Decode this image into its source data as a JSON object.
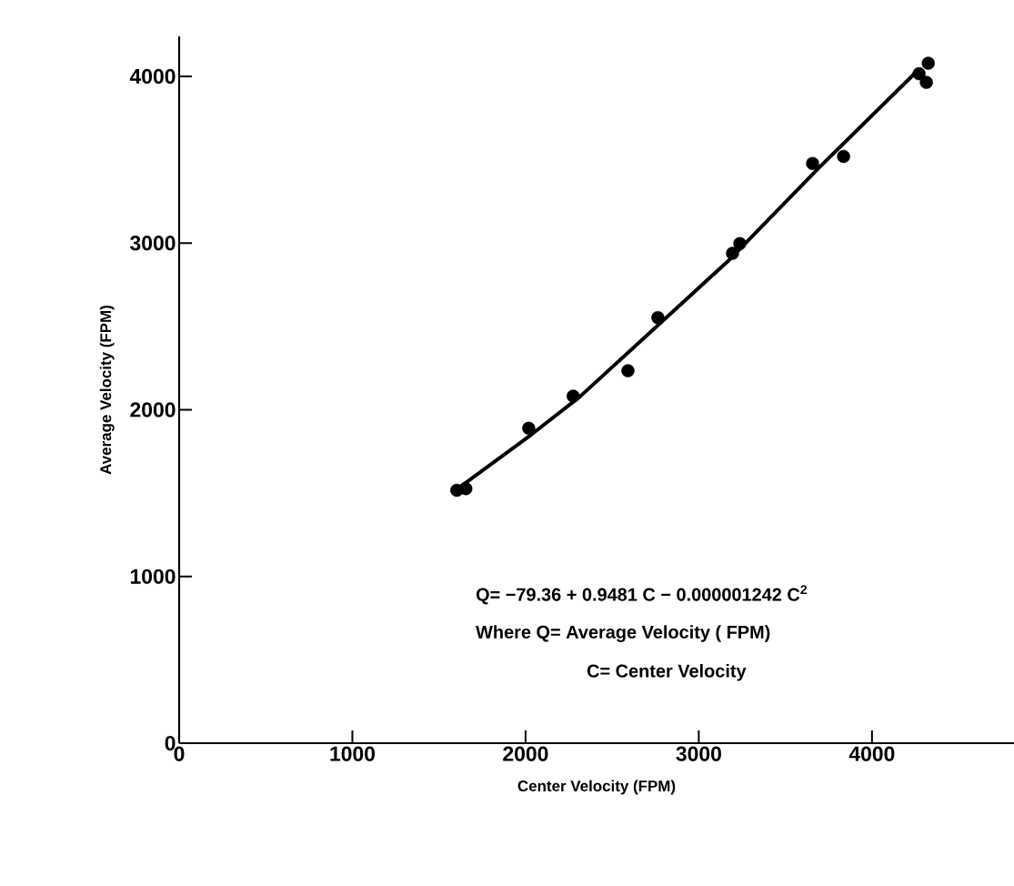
{
  "chart_data": {
    "type": "scatter",
    "xlabel": "Center  Velocity (FPM)",
    "ylabel": "Average  Velocity (FPM)",
    "xlim": [
      0,
      4820
    ],
    "ylim": [
      0,
      4240
    ],
    "xticks": [
      0,
      1000,
      2000,
      3000,
      4000
    ],
    "yticks": [
      0,
      1000,
      2000,
      3000,
      4000
    ],
    "grid": false,
    "marker": "circle",
    "series": [
      {
        "color": "#000000",
        "x": [
          1603,
          1655,
          2018,
          2275,
          2591,
          2764,
          3195,
          3237,
          3657,
          3836,
          4272,
          4325,
          4314
        ],
        "values": [
          1517,
          1527,
          1889,
          2082,
          2234,
          2553,
          2939,
          2997,
          3478,
          3520,
          4016,
          4079,
          3964
        ]
      },
      {
        "type": "line",
        "color": "#000000",
        "marker": "none",
        "line_style": "solid",
        "x": [
          1576,
          2028,
          2312,
          3169,
          3694,
          4256
        ],
        "values": [
          1502,
          1847,
          2077,
          2892,
          3452,
          4027
        ]
      }
    ],
    "annotations": [
      "Q= −79.36 + 0.9481 C − 0.000001242 C$^{2}$",
      "Where  Q= Average Velocity ( FPM)",
      "C= Center  Velocity"
    ]
  }
}
